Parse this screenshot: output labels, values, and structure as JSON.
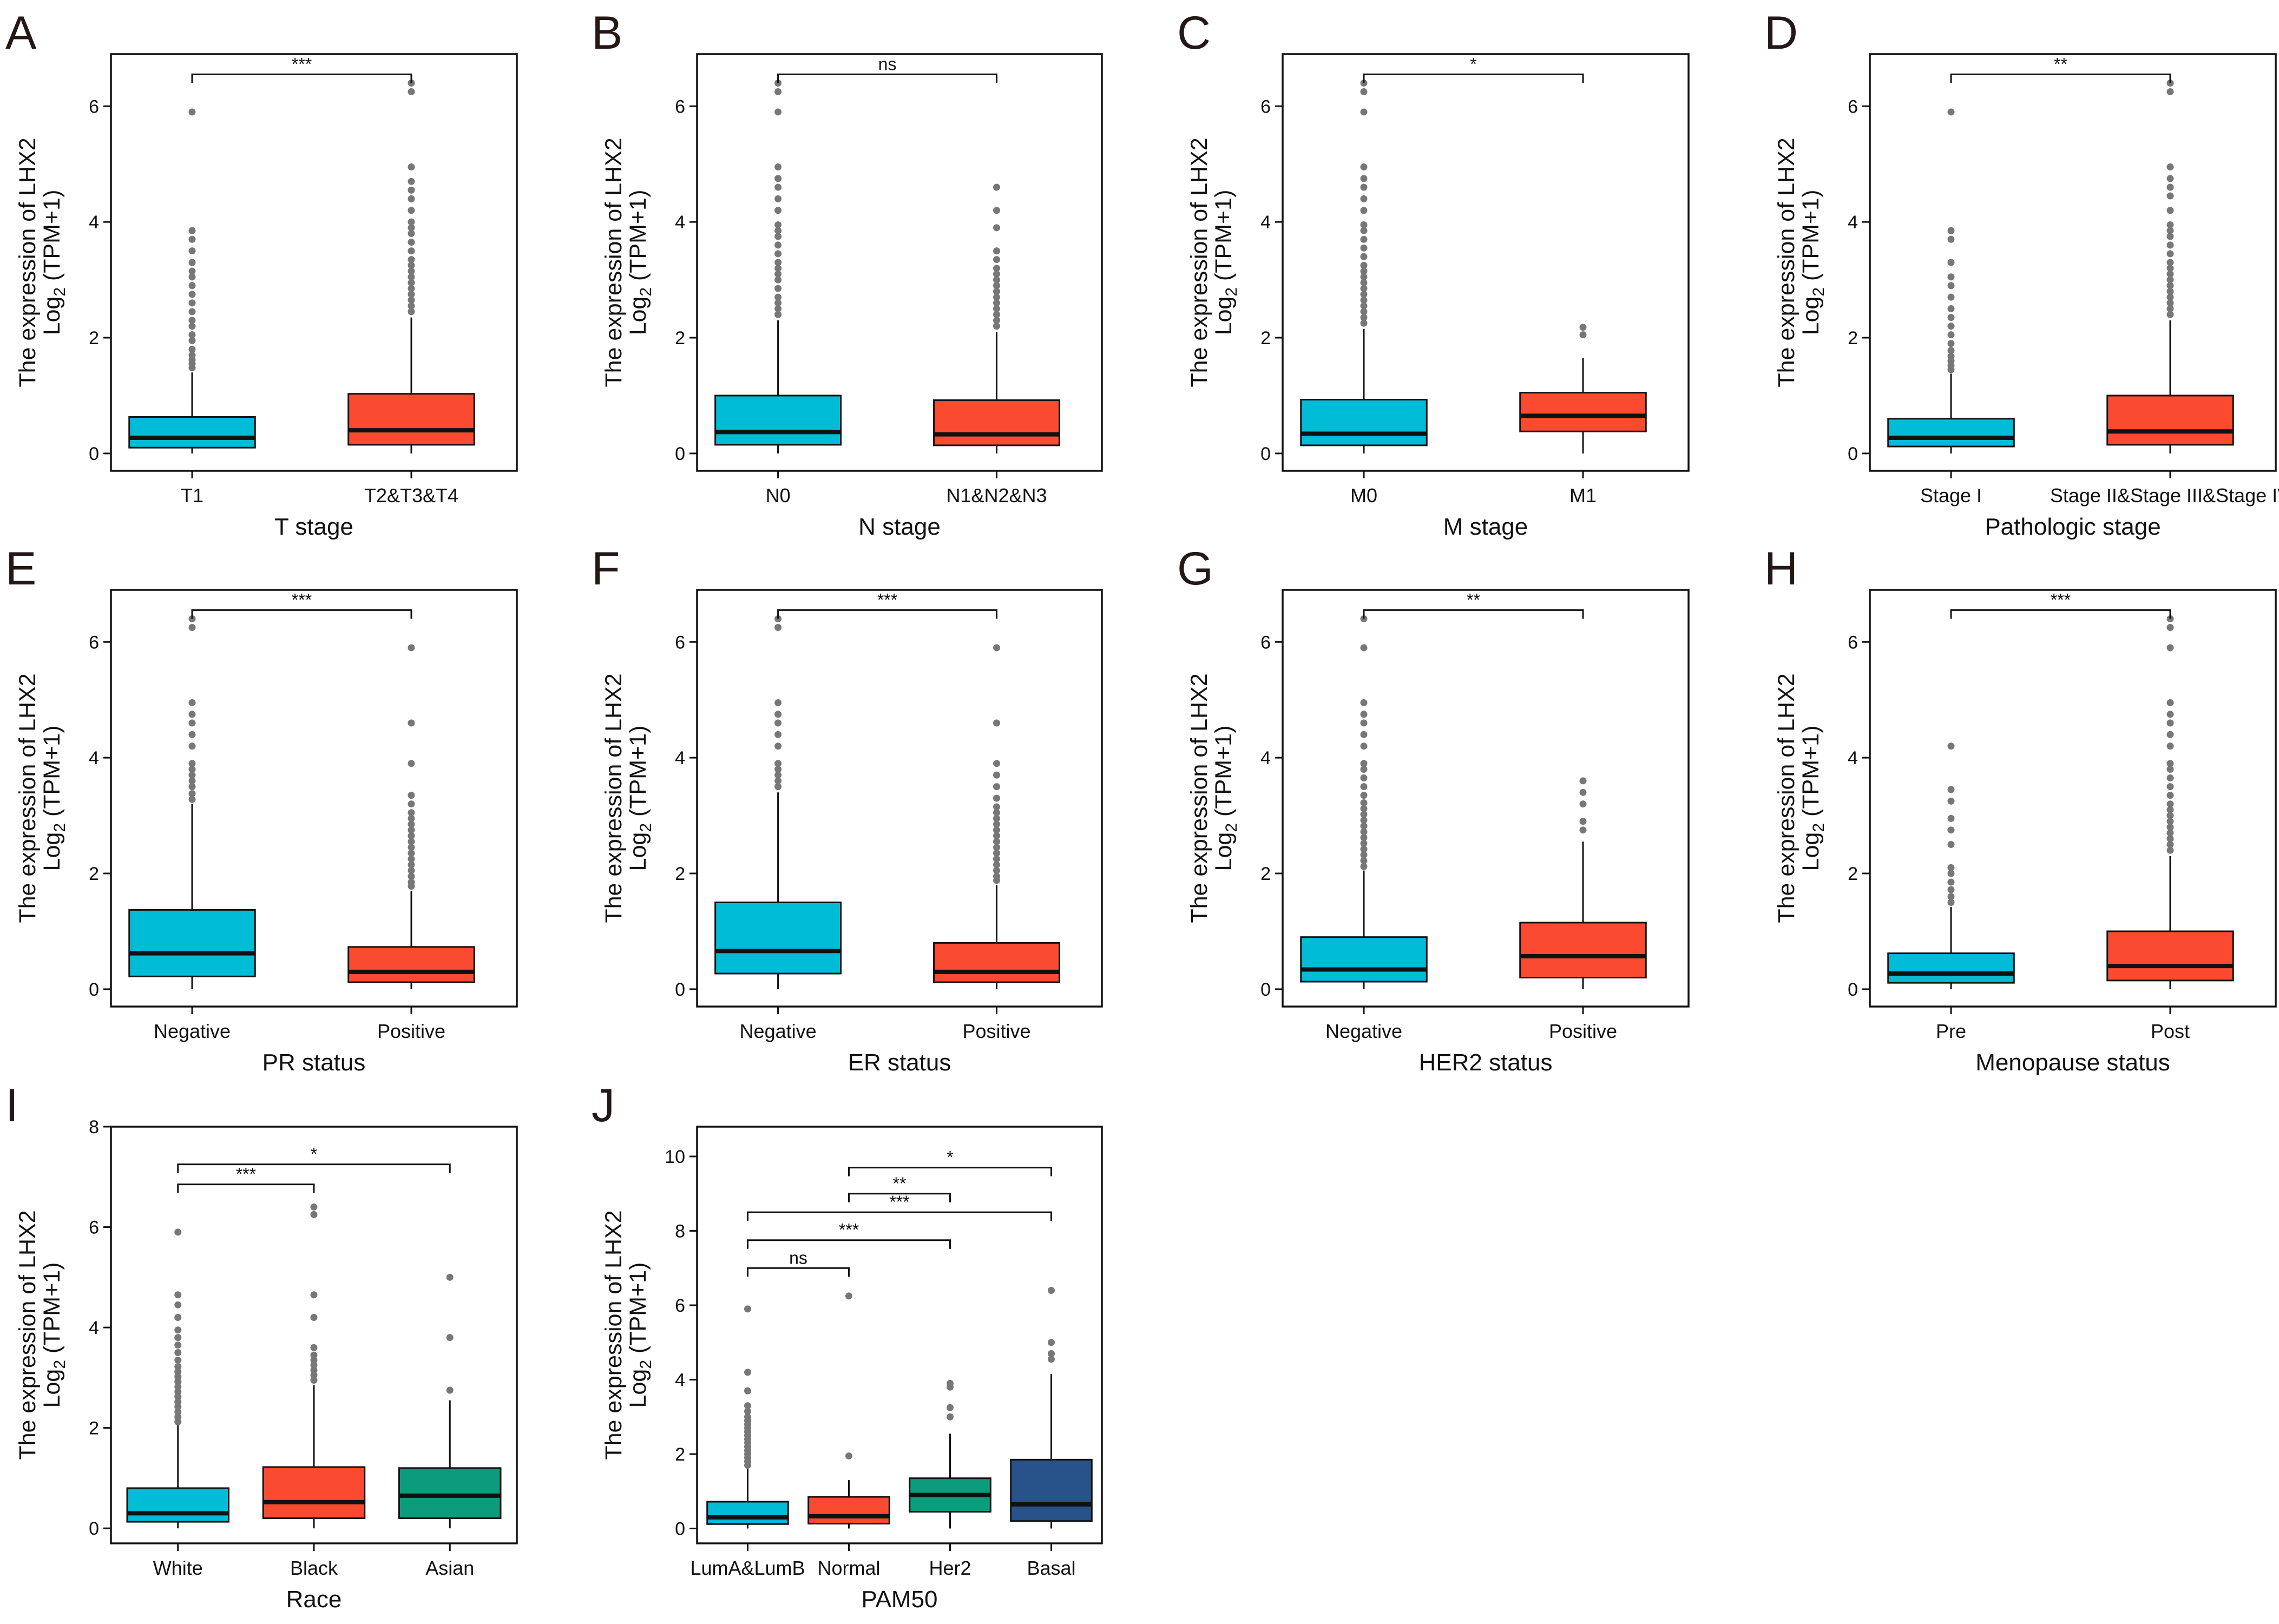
{
  "ylabel_main": "The expression of LHX2",
  "ylabel_prefix": "Log",
  "ylabel_sub": "2",
  "ylabel_suffix": " (TPM+1)",
  "colors": {
    "cyan": "#00BCD6",
    "red": "#FA4A30",
    "teal": "#0C9B7C",
    "navy": "#27528A",
    "outlier": "#777777",
    "median": "#111111"
  },
  "chart_data": [
    {
      "type": "box",
      "letter": "A",
      "xlabel": "T stage",
      "ylim": [
        -0.3,
        6.9
      ],
      "yticks": [
        0,
        2,
        4,
        6
      ],
      "groups": [
        {
          "label": "T1",
          "color": "cyan",
          "q1": 0.1,
          "median": 0.27,
          "q3": 0.63,
          "whisker_low": 0,
          "whisker_high": 1.4,
          "outliers": [
            1.48,
            1.55,
            1.62,
            1.7,
            1.8,
            1.95,
            2.05,
            2.2,
            2.3,
            2.45,
            2.6,
            2.75,
            2.9,
            3.05,
            3.15,
            3.3,
            3.5,
            3.7,
            3.85,
            5.9
          ]
        },
        {
          "label": "T2&T3&T4",
          "color": "red",
          "q1": 0.15,
          "median": 0.4,
          "q3": 1.03,
          "whisker_low": 0,
          "whisker_high": 2.35,
          "outliers": [
            2.45,
            2.55,
            2.65,
            2.75,
            2.85,
            2.95,
            3.05,
            3.15,
            3.25,
            3.35,
            3.5,
            3.65,
            3.8,
            3.9,
            4.0,
            4.2,
            4.4,
            4.55,
            4.7,
            4.95,
            6.25,
            6.4
          ]
        }
      ],
      "comparisons": [
        {
          "from": 0,
          "to": 1,
          "label": "***"
        }
      ]
    },
    {
      "type": "box",
      "letter": "B",
      "xlabel": "N stage",
      "ylim": [
        -0.3,
        6.9
      ],
      "yticks": [
        0,
        2,
        4,
        6
      ],
      "groups": [
        {
          "label": "N0",
          "color": "cyan",
          "q1": 0.15,
          "median": 0.37,
          "q3": 1.0,
          "whisker_low": 0,
          "whisker_high": 2.3,
          "outliers": [
            2.4,
            2.5,
            2.6,
            2.7,
            2.85,
            3.0,
            3.1,
            3.2,
            3.3,
            3.45,
            3.6,
            3.75,
            3.85,
            3.95,
            4.2,
            4.4,
            4.6,
            4.75,
            4.95,
            5.9,
            6.25,
            6.4
          ]
        },
        {
          "label": "N1&N2&N3",
          "color": "red",
          "q1": 0.14,
          "median": 0.33,
          "q3": 0.92,
          "whisker_low": 0,
          "whisker_high": 2.1,
          "outliers": [
            2.2,
            2.3,
            2.4,
            2.5,
            2.6,
            2.7,
            2.8,
            2.9,
            3.0,
            3.1,
            3.2,
            3.35,
            3.5,
            3.9,
            4.2,
            4.6
          ]
        }
      ],
      "comparisons": [
        {
          "from": 0,
          "to": 1,
          "label": "ns"
        }
      ]
    },
    {
      "type": "box",
      "letter": "C",
      "xlabel": "M stage",
      "ylim": [
        -0.3,
        6.9
      ],
      "yticks": [
        0,
        2,
        4,
        6
      ],
      "groups": [
        {
          "label": "M0",
          "color": "cyan",
          "q1": 0.14,
          "median": 0.34,
          "q3": 0.93,
          "whisker_low": 0,
          "whisker_high": 2.15,
          "outliers": [
            2.25,
            2.35,
            2.45,
            2.55,
            2.65,
            2.75,
            2.85,
            2.95,
            3.05,
            3.15,
            3.25,
            3.4,
            3.55,
            3.7,
            3.85,
            3.95,
            4.2,
            4.4,
            4.6,
            4.75,
            4.95,
            5.9,
            6.25,
            6.4
          ]
        },
        {
          "label": "M1",
          "color": "red",
          "q1": 0.38,
          "median": 0.65,
          "q3": 1.05,
          "whisker_low": 0,
          "whisker_high": 1.65,
          "outliers": [
            2.05,
            2.18
          ]
        }
      ],
      "comparisons": [
        {
          "from": 0,
          "to": 1,
          "label": "*"
        }
      ]
    },
    {
      "type": "box",
      "letter": "D",
      "xlabel": "Pathologic stage",
      "ylim": [
        -0.3,
        6.9
      ],
      "yticks": [
        0,
        2,
        4,
        6
      ],
      "groups": [
        {
          "label": "Stage I",
          "color": "cyan",
          "q1": 0.12,
          "median": 0.27,
          "q3": 0.6,
          "whisker_low": 0,
          "whisker_high": 1.38,
          "outliers": [
            1.45,
            1.52,
            1.6,
            1.68,
            1.78,
            1.9,
            2.05,
            2.2,
            2.35,
            2.5,
            2.7,
            2.9,
            3.05,
            3.3,
            3.7,
            3.85,
            5.9
          ]
        },
        {
          "label": "Stage II&Stage III&Stage IV",
          "color": "red",
          "q1": 0.15,
          "median": 0.38,
          "q3": 1.0,
          "whisker_low": 0,
          "whisker_high": 2.3,
          "outliers": [
            2.4,
            2.5,
            2.6,
            2.7,
            2.8,
            2.9,
            3.0,
            3.1,
            3.2,
            3.3,
            3.45,
            3.6,
            3.75,
            3.85,
            3.95,
            4.2,
            4.45,
            4.6,
            4.75,
            4.95,
            6.25,
            6.4
          ]
        }
      ],
      "comparisons": [
        {
          "from": 0,
          "to": 1,
          "label": "**"
        }
      ]
    },
    {
      "type": "box",
      "letter": "E",
      "xlabel": "PR status",
      "ylim": [
        -0.3,
        6.9
      ],
      "yticks": [
        0,
        2,
        4,
        6
      ],
      "groups": [
        {
          "label": "Negative",
          "color": "cyan",
          "q1": 0.22,
          "median": 0.62,
          "q3": 1.37,
          "whisker_low": 0,
          "whisker_high": 3.2,
          "outliers": [
            3.28,
            3.38,
            3.5,
            3.6,
            3.7,
            3.8,
            3.9,
            4.2,
            4.4,
            4.6,
            4.75,
            4.95,
            6.25,
            6.4
          ]
        },
        {
          "label": "Positive",
          "color": "red",
          "q1": 0.12,
          "median": 0.3,
          "q3": 0.73,
          "whisker_low": 0,
          "whisker_high": 1.7,
          "outliers": [
            1.78,
            1.85,
            1.95,
            2.05,
            2.15,
            2.25,
            2.35,
            2.45,
            2.55,
            2.65,
            2.75,
            2.85,
            2.95,
            3.05,
            3.2,
            3.35,
            3.9,
            4.6,
            5.9
          ]
        }
      ],
      "comparisons": [
        {
          "from": 0,
          "to": 1,
          "label": "***"
        }
      ]
    },
    {
      "type": "box",
      "letter": "F",
      "xlabel": "ER status",
      "ylim": [
        -0.3,
        6.9
      ],
      "yticks": [
        0,
        2,
        4,
        6
      ],
      "groups": [
        {
          "label": "Negative",
          "color": "cyan",
          "q1": 0.27,
          "median": 0.66,
          "q3": 1.5,
          "whisker_low": 0,
          "whisker_high": 3.4,
          "outliers": [
            3.5,
            3.6,
            3.7,
            3.8,
            3.9,
            4.2,
            4.4,
            4.6,
            4.75,
            4.95,
            6.25,
            6.4
          ]
        },
        {
          "label": "Positive",
          "color": "red",
          "q1": 0.12,
          "median": 0.3,
          "q3": 0.8,
          "whisker_low": 0,
          "whisker_high": 1.8,
          "outliers": [
            1.88,
            1.95,
            2.05,
            2.15,
            2.25,
            2.35,
            2.45,
            2.55,
            2.65,
            2.75,
            2.85,
            2.95,
            3.05,
            3.15,
            3.3,
            3.5,
            3.7,
            3.9,
            4.6,
            5.9
          ]
        }
      ],
      "comparisons": [
        {
          "from": 0,
          "to": 1,
          "label": "***"
        }
      ]
    },
    {
      "type": "box",
      "letter": "G",
      "xlabel": "HER2 status",
      "ylim": [
        -0.3,
        6.9
      ],
      "yticks": [
        0,
        2,
        4,
        6
      ],
      "groups": [
        {
          "label": "Negative",
          "color": "cyan",
          "q1": 0.13,
          "median": 0.34,
          "q3": 0.9,
          "whisker_low": 0,
          "whisker_high": 2.05,
          "outliers": [
            2.12,
            2.22,
            2.32,
            2.42,
            2.52,
            2.62,
            2.72,
            2.82,
            2.92,
            3.02,
            3.12,
            3.22,
            3.35,
            3.5,
            3.65,
            3.8,
            3.9,
            4.2,
            4.4,
            4.6,
            4.75,
            4.95,
            5.9,
            6.4
          ]
        },
        {
          "label": "Positive",
          "color": "red",
          "q1": 0.2,
          "median": 0.57,
          "q3": 1.15,
          "whisker_low": 0,
          "whisker_high": 2.55,
          "outliers": [
            2.75,
            2.9,
            3.2,
            3.4,
            3.6
          ]
        }
      ],
      "comparisons": [
        {
          "from": 0,
          "to": 1,
          "label": "**"
        }
      ]
    },
    {
      "type": "box",
      "letter": "H",
      "xlabel": "Menopause status",
      "ylim": [
        -0.3,
        6.9
      ],
      "yticks": [
        0,
        2,
        4,
        6
      ],
      "groups": [
        {
          "label": "Pre",
          "color": "cyan",
          "q1": 0.11,
          "median": 0.27,
          "q3": 0.62,
          "whisker_low": 0,
          "whisker_high": 1.42,
          "outliers": [
            1.5,
            1.6,
            1.72,
            1.85,
            2.0,
            2.1,
            2.5,
            2.75,
            2.95,
            3.25,
            3.45,
            4.2
          ]
        },
        {
          "label": "Post",
          "color": "red",
          "q1": 0.15,
          "median": 0.4,
          "q3": 1.0,
          "whisker_low": 0,
          "whisker_high": 2.3,
          "outliers": [
            2.4,
            2.5,
            2.6,
            2.7,
            2.8,
            2.9,
            3.0,
            3.1,
            3.2,
            3.35,
            3.5,
            3.65,
            3.8,
            3.9,
            4.2,
            4.4,
            4.6,
            4.75,
            4.95,
            5.9,
            6.25,
            6.4
          ]
        }
      ],
      "comparisons": [
        {
          "from": 0,
          "to": 1,
          "label": "***"
        }
      ]
    },
    {
      "type": "box",
      "letter": "I",
      "xlabel": "Race",
      "ylim": [
        -0.3,
        8.0
      ],
      "yticks": [
        0,
        2,
        4,
        6,
        8
      ],
      "groups": [
        {
          "label": "White",
          "color": "cyan",
          "q1": 0.13,
          "median": 0.3,
          "q3": 0.8,
          "whisker_low": 0,
          "whisker_high": 2.05,
          "outliers": [
            2.12,
            2.22,
            2.32,
            2.42,
            2.52,
            2.62,
            2.72,
            2.82,
            2.92,
            3.02,
            3.12,
            3.22,
            3.35,
            3.5,
            3.65,
            3.8,
            3.95,
            4.2,
            4.45,
            4.65,
            5.9
          ]
        },
        {
          "label": "Black",
          "color": "red",
          "q1": 0.2,
          "median": 0.52,
          "q3": 1.22,
          "whisker_low": 0,
          "whisker_high": 2.85,
          "outliers": [
            2.95,
            3.05,
            3.15,
            3.25,
            3.35,
            3.45,
            3.6,
            4.2,
            4.65,
            6.25,
            6.4
          ]
        },
        {
          "label": "Asian",
          "color": "teal",
          "q1": 0.2,
          "median": 0.65,
          "q3": 1.2,
          "whisker_low": 0,
          "whisker_high": 2.55,
          "outliers": [
            2.75,
            3.8,
            5.0
          ]
        }
      ],
      "comparisons": [
        {
          "from": 0,
          "to": 1,
          "label": "***",
          "y": 6.85
        },
        {
          "from": 0,
          "to": 2,
          "label": "*",
          "y": 7.25
        }
      ]
    },
    {
      "type": "box",
      "letter": "J",
      "xlabel": "PAM50",
      "ylim": [
        -0.4,
        10.8
      ],
      "yticks": [
        0,
        2,
        4,
        6,
        8,
        10
      ],
      "groups": [
        {
          "label": "LumA&LumB",
          "color": "cyan",
          "q1": 0.12,
          "median": 0.3,
          "q3": 0.72,
          "whisker_low": 0,
          "whisker_high": 1.62,
          "outliers": [
            1.7,
            1.8,
            1.9,
            2.0,
            2.1,
            2.2,
            2.3,
            2.4,
            2.5,
            2.6,
            2.7,
            2.8,
            2.9,
            3.0,
            3.15,
            3.3,
            3.7,
            4.2,
            5.9
          ]
        },
        {
          "label": "Normal",
          "color": "red",
          "q1": 0.13,
          "median": 0.33,
          "q3": 0.85,
          "whisker_low": 0,
          "whisker_high": 1.3,
          "outliers": [
            1.95,
            6.25
          ]
        },
        {
          "label": "Her2",
          "color": "teal",
          "q1": 0.45,
          "median": 0.9,
          "q3": 1.35,
          "whisker_low": 0,
          "whisker_high": 2.55,
          "outliers": [
            3.0,
            3.25,
            3.8,
            3.9
          ]
        },
        {
          "label": "Basal",
          "color": "navy",
          "q1": 0.2,
          "median": 0.65,
          "q3": 1.85,
          "whisker_low": 0,
          "whisker_high": 4.15,
          "outliers": [
            4.55,
            4.7,
            5.0,
            6.4
          ]
        }
      ],
      "comparisons": [
        {
          "from": 0,
          "to": 1,
          "label": "ns",
          "y": 7.0
        },
        {
          "from": 0,
          "to": 2,
          "label": "***",
          "y": 7.75
        },
        {
          "from": 0,
          "to": 3,
          "label": "***",
          "y": 8.5
        },
        {
          "from": 1,
          "to": 2,
          "label": "**",
          "y": 9.0
        },
        {
          "from": 1,
          "to": 3,
          "label": "*",
          "y": 9.7
        }
      ]
    }
  ]
}
